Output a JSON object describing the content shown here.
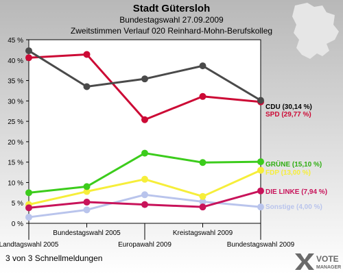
{
  "header": {
    "title": "Stadt Gütersloh",
    "subtitle": "Bundestagswahl 27.09.2009",
    "subtitle2": "Zweitstimmen Verlauf 020 Reinhard-Mohn-Berufskolleg"
  },
  "footer": {
    "text": "3 von 3 Schnellmeldungen"
  },
  "logo": {
    "line1": "VOTE",
    "line2": "MANAGER"
  },
  "colors": {
    "background_gradient_start": "#b8b8b8",
    "background_gradient_end": "#ffffff",
    "plot_bg": "#ffffff"
  },
  "chart_data": {
    "type": "line",
    "categories": [
      "Landtagswahl 2005",
      "Bundestagswahl 2005",
      "Europawahl 2009",
      "Kreistagswahl 2009",
      "Bundestagswahl 2009"
    ],
    "ylim": [
      0,
      45
    ],
    "yticks": [
      0,
      5,
      10,
      15,
      20,
      25,
      30,
      35,
      40,
      45
    ],
    "ytick_labels": [
      "0 %",
      "5 %",
      "10 %",
      "15 %",
      "20 %",
      "25 %",
      "30 %",
      "35 %",
      "40 %",
      "45 %"
    ],
    "grid": false,
    "series": [
      {
        "name": "CDU",
        "label": "CDU (30,14 %)",
        "color": "#4a4a4a",
        "label_color": "#000000",
        "values": [
          42.3,
          33.5,
          35.4,
          38.6,
          30.14
        ]
      },
      {
        "name": "SPD",
        "label": "SPD (29,77 %)",
        "color": "#cc0a35",
        "label_color": "#cc0a35",
        "values": [
          40.6,
          41.4,
          25.4,
          31.1,
          29.77
        ]
      },
      {
        "name": "GRÜNE",
        "label": "GRÜNE (15,10 %)",
        "color": "#3ccc1c",
        "label_color": "#2fae12",
        "values": [
          7.5,
          9.0,
          17.2,
          14.9,
          15.1
        ]
      },
      {
        "name": "FDP",
        "label": "FDP (13,00 %)",
        "color": "#f6ee3a",
        "label_color": "#f6ee3a",
        "values": [
          4.6,
          7.8,
          10.8,
          6.6,
          13.0
        ]
      },
      {
        "name": "DIE LINKE",
        "label": "DIE LINKE (7,94 %)",
        "color": "#c8135a",
        "label_color": "#c8135a",
        "values": [
          3.8,
          5.2,
          4.6,
          4.0,
          7.94
        ]
      },
      {
        "name": "Sonstige",
        "label": "Sonstige (4,00 %)",
        "color": "#b9c4ec",
        "label_color": "#b9c4ec",
        "values": [
          1.5,
          3.3,
          7.0,
          5.3,
          4.0
        ]
      }
    ]
  }
}
